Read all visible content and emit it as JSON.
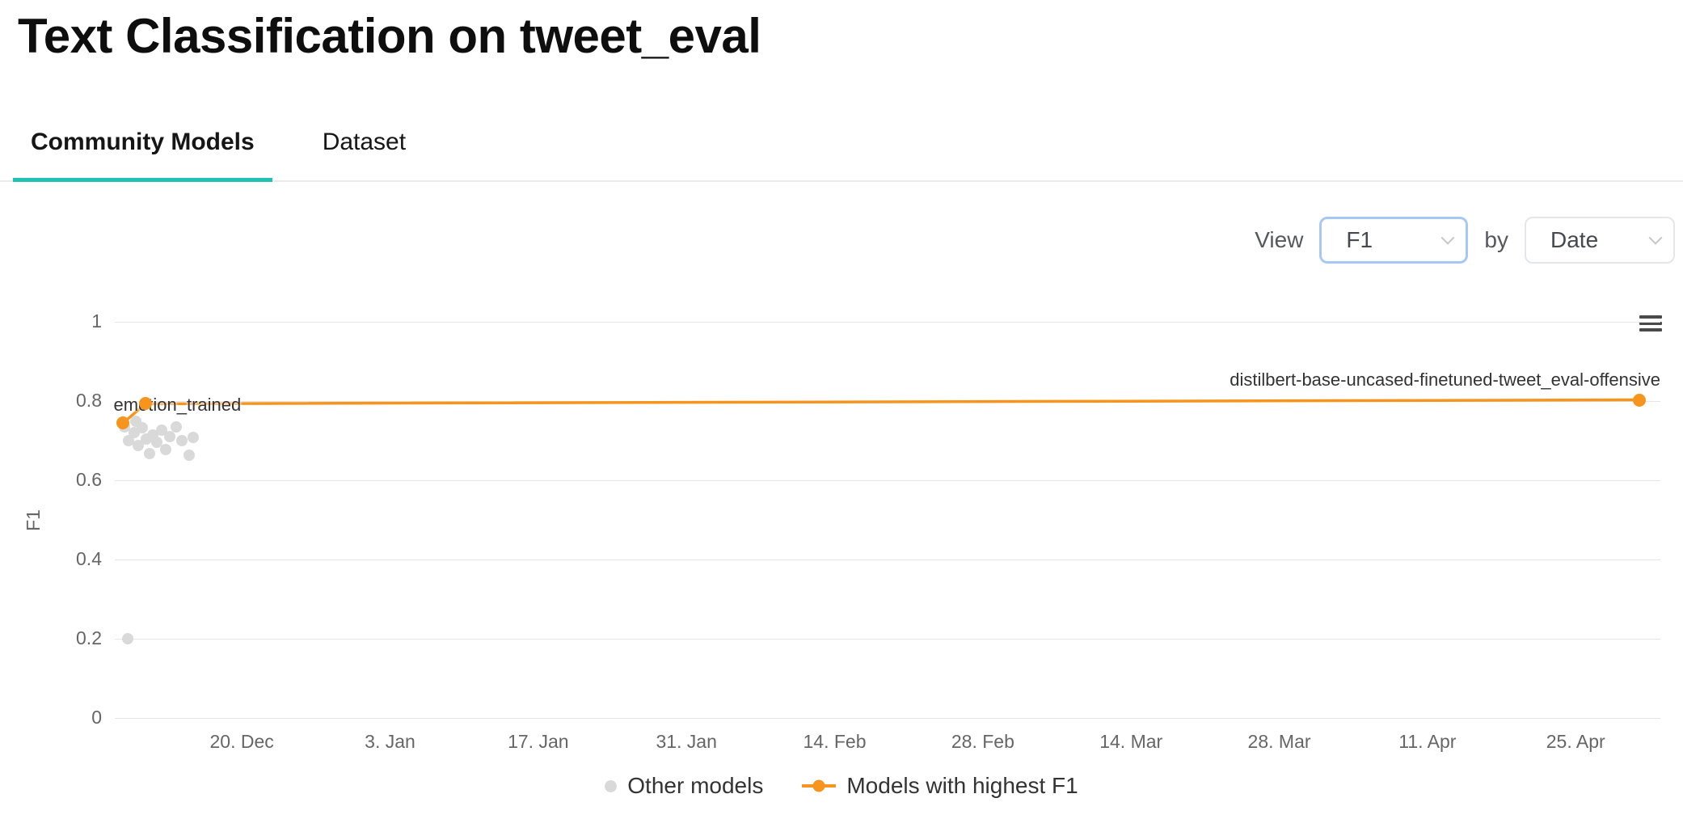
{
  "header": {
    "title": "Text Classification on tweet_eval"
  },
  "tabs": [
    {
      "label": "Community Models",
      "active": true
    },
    {
      "label": "Dataset",
      "active": false
    }
  ],
  "controls": {
    "view_label": "View",
    "metric_select": {
      "value": "F1"
    },
    "by_label": "by",
    "group_select": {
      "value": "Date"
    }
  },
  "colors": {
    "tab_underline": "#1ec3b4",
    "highlight_orange": "#f7941e",
    "other_models_gray": "#d9d9d9",
    "metric_select_focus": "#a6c8f7",
    "grid": "#e6e6e6"
  },
  "chart_data": {
    "type": "scatter",
    "title": "",
    "xlabel": "",
    "ylabel": "F1",
    "ylim": [
      0,
      1
    ],
    "yticks": [
      0,
      0.2,
      0.4,
      0.6,
      0.8,
      1
    ],
    "x_unit": "days since 8 Dec",
    "x_domain": [
      0,
      146
    ],
    "xticks": [
      {
        "x": 12,
        "label": "20. Dec"
      },
      {
        "x": 26,
        "label": "3. Jan"
      },
      {
        "x": 40,
        "label": "17. Jan"
      },
      {
        "x": 54,
        "label": "31. Jan"
      },
      {
        "x": 68,
        "label": "14. Feb"
      },
      {
        "x": 82,
        "label": "28. Feb"
      },
      {
        "x": 96,
        "label": "14. Mar"
      },
      {
        "x": 110,
        "label": "28. Mar"
      },
      {
        "x": 124,
        "label": "11. Apr"
      },
      {
        "x": 138,
        "label": "25. Apr"
      }
    ],
    "grid": true,
    "legend_position": "bottom-center",
    "series": [
      {
        "name": "Other models",
        "type": "scatter",
        "color": "#d9d9d9",
        "points": [
          [
            0.9,
            0.735
          ],
          [
            1.2,
            0.2
          ],
          [
            1.3,
            0.7
          ],
          [
            1.8,
            0.72
          ],
          [
            2.0,
            0.748
          ],
          [
            2.2,
            0.688
          ],
          [
            2.6,
            0.732
          ],
          [
            3.0,
            0.705
          ],
          [
            3.3,
            0.668
          ],
          [
            3.6,
            0.715
          ],
          [
            4.0,
            0.695
          ],
          [
            4.4,
            0.726
          ],
          [
            4.8,
            0.678
          ],
          [
            5.2,
            0.71
          ],
          [
            5.8,
            0.734
          ],
          [
            6.3,
            0.7
          ],
          [
            7.0,
            0.664
          ],
          [
            7.4,
            0.708
          ]
        ]
      },
      {
        "name": "Models with highest F1",
        "type": "line",
        "color": "#f7941e",
        "points": [
          {
            "x": 0.8,
            "y": 0.745,
            "label": "emotion_trained",
            "label_align": "left"
          },
          {
            "x": 2.9,
            "y": 0.793
          },
          {
            "x": 144,
            "y": 0.803,
            "label": "distilbert-base-uncased-finetuned-tweet_eval-offensive",
            "label_align": "right"
          }
        ]
      }
    ]
  }
}
